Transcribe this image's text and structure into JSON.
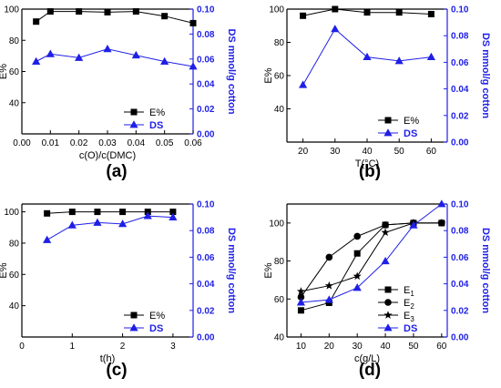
{
  "colors": {
    "left": "#000000",
    "right": "#1f1fe6"
  },
  "chart_data": [
    {
      "type": "line",
      "tag": "(a)",
      "xlabel": "c(O)/c(DMC)",
      "ylabel": "E%",
      "y2label": "DS mmol/g cotton",
      "xlim": [
        0.0,
        0.06
      ],
      "xticks": [
        "0.00",
        "0.01",
        "0.02",
        "0.03",
        "0.04",
        "0.05",
        "0.06"
      ],
      "xtick_values": [
        0.0,
        0.01,
        0.02,
        0.03,
        0.04,
        0.05,
        0.06
      ],
      "ylim": [
        20,
        100
      ],
      "yticks": [
        "40",
        "60",
        "80",
        "100"
      ],
      "ytick_values": [
        40,
        60,
        80,
        100
      ],
      "y2lim": [
        0.0,
        0.1
      ],
      "y2ticks": [
        "0.00",
        "0.02",
        "0.04",
        "0.06",
        "0.08",
        "0.10"
      ],
      "y2tick_values": [
        0.0,
        0.02,
        0.04,
        0.06,
        0.08,
        0.1
      ],
      "legend_position": "bottom-right",
      "series": [
        {
          "name": "E%",
          "axis": "left",
          "marker": "square",
          "x": [
            0.005,
            0.01,
            0.02,
            0.03,
            0.04,
            0.05,
            0.06
          ],
          "y": [
            92,
            98.5,
            98.5,
            98,
            98.5,
            95.5,
            91
          ]
        },
        {
          "name": "DS",
          "axis": "right",
          "marker": "triangle",
          "x": [
            0.005,
            0.01,
            0.02,
            0.03,
            0.04,
            0.05,
            0.06
          ],
          "y": [
            0.058,
            0.064,
            0.061,
            0.068,
            0.063,
            0.058,
            0.054
          ]
        }
      ]
    },
    {
      "type": "line",
      "tag": "(b)",
      "xlabel": "T(°C)",
      "ylabel": "E%",
      "y2label": "DS mmol/g cotton",
      "xlim": [
        15,
        65
      ],
      "xticks": [
        "20",
        "30",
        "40",
        "50",
        "60"
      ],
      "xtick_values": [
        20,
        30,
        40,
        50,
        60
      ],
      "ylim": [
        20,
        100
      ],
      "yticks": [
        "40",
        "60",
        "80",
        "100"
      ],
      "ytick_values": [
        40,
        60,
        80,
        100
      ],
      "y2lim": [
        0.0,
        0.1
      ],
      "y2ticks": [
        "0.00",
        "0.02",
        "0.04",
        "0.06",
        "0.08",
        "0.10"
      ],
      "y2tick_values": [
        0.0,
        0.02,
        0.04,
        0.06,
        0.08,
        0.1
      ],
      "legend_position": "bottom-right",
      "series": [
        {
          "name": "E%",
          "axis": "left",
          "marker": "square",
          "x": [
            20,
            30,
            40,
            50,
            60
          ],
          "y": [
            96,
            100,
            98,
            98,
            97
          ]
        },
        {
          "name": "DS",
          "axis": "right",
          "marker": "triangle",
          "x": [
            20,
            30,
            40,
            50,
            60
          ],
          "y": [
            0.043,
            0.085,
            0.064,
            0.061,
            0.064
          ]
        }
      ]
    },
    {
      "type": "line",
      "tag": "(c)",
      "xlabel": "t(h)",
      "ylabel": "E%",
      "y2label": "DS mmol/g cotton",
      "xlim": [
        0,
        3.4
      ],
      "xticks": [
        "0",
        "1",
        "2",
        "3"
      ],
      "xtick_values": [
        0,
        1,
        2,
        3
      ],
      "ylim": [
        20,
        105
      ],
      "yticks": [
        "40",
        "60",
        "80",
        "100"
      ],
      "ytick_values": [
        40,
        60,
        80,
        100
      ],
      "y2lim": [
        0.0,
        0.1
      ],
      "y2ticks": [
        "0.00",
        "0.02",
        "0.04",
        "0.06",
        "0.08",
        "0.10"
      ],
      "y2tick_values": [
        0.0,
        0.02,
        0.04,
        0.06,
        0.08,
        0.1
      ],
      "legend_position": "bottom-right",
      "series": [
        {
          "name": "E%",
          "axis": "left",
          "marker": "square",
          "x": [
            0.5,
            1,
            1.5,
            2,
            2.5,
            3
          ],
          "y": [
            99,
            100,
            100,
            100,
            100,
            100
          ]
        },
        {
          "name": "DS",
          "axis": "right",
          "marker": "triangle",
          "x": [
            0.5,
            1,
            1.5,
            2,
            2.5,
            3
          ],
          "y": [
            0.073,
            0.084,
            0.086,
            0.085,
            0.091,
            0.09
          ]
        }
      ]
    },
    {
      "type": "line",
      "tag": "(d)",
      "xlabel": "c(g/L)",
      "ylabel": "E%",
      "y2label": "DS mmol/g cotton",
      "xlim": [
        5,
        62
      ],
      "xticks": [
        "10",
        "20",
        "30",
        "40",
        "50",
        "60"
      ],
      "xtick_values": [
        10,
        20,
        30,
        40,
        50,
        60
      ],
      "ylim": [
        40,
        110
      ],
      "yticks": [
        "40",
        "60",
        "80",
        "100"
      ],
      "ytick_values": [
        40,
        60,
        80,
        100
      ],
      "y2lim": [
        0.0,
        0.1
      ],
      "y2ticks": [
        "0.00",
        "0.02",
        "0.04",
        "0.06",
        "0.08",
        "0.10"
      ],
      "y2tick_values": [
        0.0,
        0.02,
        0.04,
        0.06,
        0.08,
        0.1
      ],
      "legend_position": "bottom-right",
      "series": [
        {
          "name": "E",
          "sub": "1",
          "axis": "left",
          "marker": "square",
          "x": [
            10,
            20,
            30,
            40,
            50,
            60
          ],
          "y": [
            54,
            58,
            84,
            99,
            100,
            100
          ]
        },
        {
          "name": "E",
          "sub": "2",
          "axis": "left",
          "marker": "circle",
          "x": [
            10,
            20,
            30,
            40,
            50,
            60
          ],
          "y": [
            61,
            82,
            93,
            99,
            100,
            100
          ]
        },
        {
          "name": "E",
          "sub": "3",
          "axis": "left",
          "marker": "star",
          "x": [
            10,
            20,
            30,
            40,
            50,
            60
          ],
          "y": [
            64,
            67,
            72,
            95,
            100,
            100
          ]
        },
        {
          "name": "DS",
          "axis": "right",
          "marker": "triangle",
          "x": [
            10,
            20,
            30,
            40,
            50,
            60
          ],
          "y": [
            0.026,
            0.028,
            0.037,
            0.057,
            0.084,
            0.1
          ]
        }
      ]
    }
  ]
}
